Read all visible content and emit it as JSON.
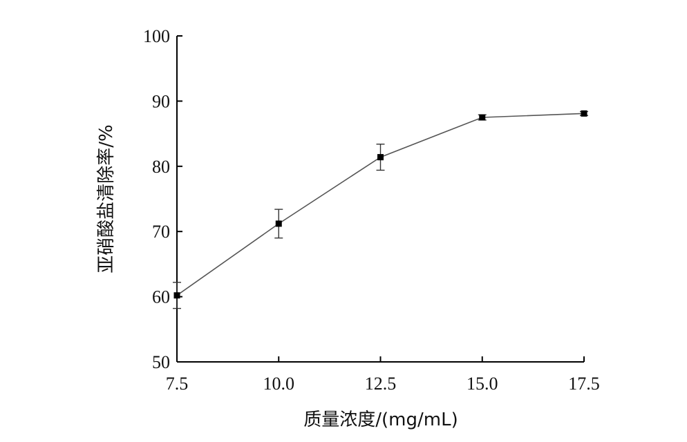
{
  "chart_data": {
    "type": "line",
    "x": [
      7.5,
      10.0,
      12.5,
      15.0,
      17.5
    ],
    "series": [
      {
        "values": [
          60.2,
          71.2,
          81.4,
          87.5,
          88.1
        ],
        "errors": [
          2.0,
          2.2,
          2.0,
          0.4,
          0.3
        ]
      }
    ],
    "xlabel": "质量浓度/(mg/mL)",
    "ylabel": "亚硝酸盐清除率/%",
    "xlim": [
      7.5,
      17.5
    ],
    "ylim": [
      50,
      100
    ],
    "x_ticks": [
      "7.5",
      "10.0",
      "12.5",
      "15.0",
      "17.5"
    ],
    "y_ticks": [
      "50",
      "60",
      "70",
      "80",
      "90",
      "100"
    ],
    "grid": false,
    "colors": {
      "line": "#555555",
      "marker": "#000000",
      "axis": "#000000"
    }
  }
}
